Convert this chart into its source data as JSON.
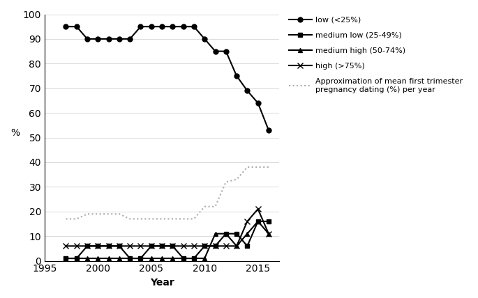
{
  "low_years": [
    1997,
    1998,
    1999,
    2000,
    2001,
    2002,
    2003,
    2004,
    2005,
    2006,
    2007,
    2008,
    2009,
    2010,
    2011,
    2012,
    2013,
    2014,
    2015,
    2016
  ],
  "low_values": [
    95,
    95,
    90,
    90,
    90,
    90,
    90,
    95,
    95,
    95,
    95,
    95,
    95,
    90,
    85,
    85,
    75,
    69,
    64,
    53
  ],
  "med_low_years": [
    1997,
    1998,
    1999,
    2000,
    2001,
    2002,
    2003,
    2004,
    2005,
    2006,
    2007,
    2008,
    2009,
    2010,
    2011,
    2012,
    2013,
    2014,
    2015,
    2016
  ],
  "med_low_values": [
    1,
    1,
    6,
    6,
    6,
    6,
    1,
    1,
    6,
    6,
    6,
    1,
    1,
    6,
    6,
    11,
    11,
    6,
    16,
    16
  ],
  "med_high_years": [
    1997,
    1998,
    1999,
    2000,
    2001,
    2002,
    2003,
    2004,
    2005,
    2006,
    2007,
    2008,
    2009,
    2010,
    2011,
    2012,
    2013,
    2014,
    2015,
    2016
  ],
  "med_high_values": [
    1,
    1,
    1,
    1,
    1,
    1,
    1,
    1,
    1,
    1,
    1,
    1,
    1,
    1,
    11,
    11,
    6,
    11,
    16,
    11
  ],
  "high_years": [
    1997,
    1998,
    1999,
    2000,
    2001,
    2002,
    2003,
    2004,
    2005,
    2006,
    2007,
    2008,
    2009,
    2010,
    2011,
    2012,
    2013,
    2014,
    2015,
    2016
  ],
  "high_values": [
    6,
    6,
    6,
    6,
    6,
    6,
    6,
    6,
    6,
    6,
    6,
    6,
    6,
    6,
    6,
    6,
    6,
    16,
    21,
    11
  ],
  "approx_years": [
    1997,
    1998,
    1999,
    2000,
    2001,
    2002,
    2003,
    2004,
    2005,
    2006,
    2007,
    2008,
    2009,
    2010,
    2011,
    2012,
    2013,
    2014,
    2015,
    2016
  ],
  "approx_values": [
    17,
    17,
    19,
    19,
    19,
    19,
    17,
    17,
    17,
    17,
    17,
    17,
    17,
    22,
    22,
    32,
    33,
    38,
    38,
    38
  ],
  "xlim": [
    1995,
    2017
  ],
  "ylim": [
    0,
    100
  ],
  "yticks": [
    0,
    10,
    20,
    30,
    40,
    50,
    60,
    70,
    80,
    90,
    100
  ],
  "xticks": [
    1995,
    2000,
    2005,
    2010,
    2015
  ],
  "xlabel": "Year",
  "ylabel": "%",
  "legend_labels": [
    "low (<25%)",
    "medium low (25-49%)",
    "medium high (50-74%)",
    "high (>75%)",
    "Approximation of mean first trimester\npregnancy dating (%) per year"
  ],
  "color_main": "#000000",
  "color_approx": "#aaaaaa"
}
